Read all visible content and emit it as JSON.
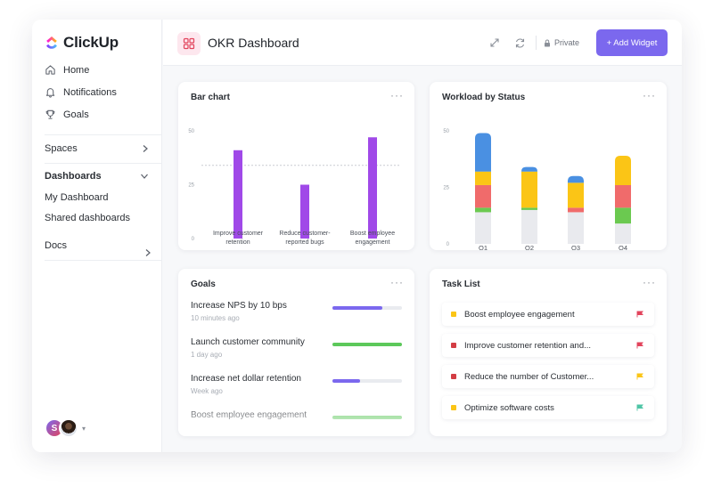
{
  "app": {
    "logo": "ClickUp"
  },
  "sidebar": {
    "nav": [
      {
        "label": "Home",
        "icon": "home-icon"
      },
      {
        "label": "Notifications",
        "icon": "bell-icon"
      },
      {
        "label": "Goals",
        "icon": "trophy-icon"
      }
    ],
    "spaces_label": "Spaces",
    "dashboards_label": "Dashboards",
    "dashboard_items": [
      "My Dashboard",
      "Shared dashboards"
    ],
    "docs_label": "Docs",
    "avatar_initial": "S"
  },
  "header": {
    "title": "OKR Dashboard",
    "private_label": "Private",
    "add_widget_label": "+ Add Widget"
  },
  "bar_widget": {
    "title": "Bar chart",
    "chart_data": {
      "type": "bar",
      "categories": [
        "Improve customer retention",
        "Reduce customer-reported bugs",
        "Boost employee engagement"
      ],
      "category_lines": [
        [
          "Improve customer",
          "retention"
        ],
        [
          "Reduce customer-",
          "reported bugs"
        ],
        [
          "Boost employee",
          "engagement"
        ]
      ],
      "values": [
        41,
        25,
        47
      ],
      "ylim": [
        0,
        50
      ],
      "yticks": [
        "0",
        "25",
        "50"
      ],
      "reference_line": 34,
      "color": "#a049e8"
    }
  },
  "status_widget": {
    "title": "Workload by Status",
    "chart_data": {
      "type": "bar",
      "stacked": true,
      "categories": [
        "Q1",
        "Q2",
        "Q3",
        "Q4"
      ],
      "yticks": [
        "0",
        "25",
        "50"
      ],
      "ylim": [
        0,
        50
      ],
      "series": [
        {
          "color": "#e9eaee",
          "values": [
            14,
            15,
            14,
            9
          ]
        },
        {
          "color": "#6bc950",
          "values": [
            2,
            1,
            0,
            7
          ]
        },
        {
          "color": "#f06b6b",
          "values": [
            10,
            0,
            2,
            10
          ]
        },
        {
          "color": "#fbc516",
          "values": [
            6,
            16,
            11,
            13
          ]
        },
        {
          "color": "#4a90e2",
          "values": [
            17,
            2,
            3,
            0
          ]
        }
      ]
    }
  },
  "goals_widget": {
    "title": "Goals",
    "goals": [
      {
        "name": "Increase NPS by 10 bps",
        "time": "10 minutes ago",
        "progress": 0.72,
        "color": "#7b68ee"
      },
      {
        "name": "Launch customer community",
        "time": "1 day ago",
        "progress": 1.0,
        "color": "#5cc85a"
      },
      {
        "name": "Increase net dollar retention",
        "time": "Week ago",
        "progress": 0.4,
        "color": "#7b68ee"
      },
      {
        "name": "Boost employee engagement",
        "time": "",
        "progress": 1.0,
        "color": "#5cc85a"
      }
    ]
  },
  "tasks_widget": {
    "title": "Task List",
    "tasks": [
      {
        "name": "Boost employee engagement",
        "status_color": "#fbc516",
        "flag_color": "#e2445c"
      },
      {
        "name": "Improve customer retention and...",
        "status_color": "#d33d44",
        "flag_color": "#e2445c"
      },
      {
        "name": "Reduce the number of Customer...",
        "status_color": "#d33d44",
        "flag_color": "#fbc516"
      },
      {
        "name": "Optimize software costs",
        "status_color": "#fbc516",
        "flag_color": "#4fc5a6"
      }
    ]
  }
}
